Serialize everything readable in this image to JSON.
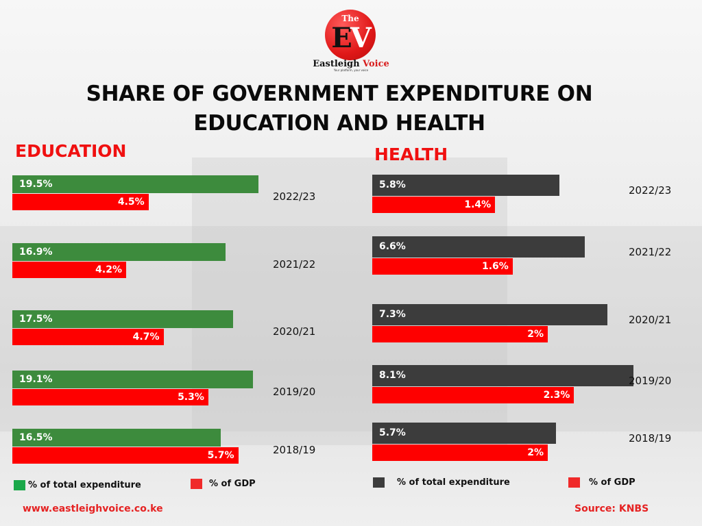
{
  "logo": {
    "the": "The",
    "e": "E",
    "v": "V",
    "name_1": "Eastleigh",
    "name_2": "Voice",
    "tagline": "Your platform, your voice"
  },
  "title_line1": "SHARE OF GOVERNMENT EXPENDITURE ON",
  "title_line2": "EDUCATION AND HEALTH",
  "chart_data": [
    {
      "type": "bar",
      "orientation": "horizontal",
      "title": "EDUCATION",
      "categories": [
        "2022/23",
        "2021/22",
        "2020/21",
        "2019/20",
        "2018/19"
      ],
      "series": [
        {
          "name": "% of total expenditure",
          "color": "#3d8b3d",
          "values": [
            19.5,
            16.9,
            17.5,
            19.1,
            16.5
          ],
          "labels": [
            "19.5%",
            "16.9%",
            "17.5%",
            "19.1%",
            "16.5%"
          ]
        },
        {
          "name": "% of GDP",
          "color": "#fe0000",
          "values": [
            4.5,
            4.2,
            4.7,
            5.3,
            5.7
          ],
          "labels": [
            "4.5%",
            "4.2%",
            "4.7%",
            "5.3%",
            "5.7%"
          ]
        }
      ],
      "legend_colors": [
        "#1aa84a",
        "#f02a2a"
      ],
      "legend": "bottom",
      "grid": false
    },
    {
      "type": "bar",
      "orientation": "horizontal",
      "title": "HEALTH",
      "categories": [
        "2022/23",
        "2021/22",
        "2020/21",
        "2019/20",
        "2018/19"
      ],
      "series": [
        {
          "name": "% of total expenditure",
          "color": "#3c3c3c",
          "values": [
            5.8,
            6.6,
            7.3,
            8.1,
            5.7
          ],
          "labels": [
            "5.8%",
            "6.6%",
            "7.3%",
            "8.1%",
            "5.7%"
          ]
        },
        {
          "name": "% of GDP",
          "color": "#fe0000",
          "values": [
            1.4,
            1.6,
            2,
            2.3,
            2
          ],
          "labels": [
            "1.4%",
            "1.6%",
            "2%",
            "2.3%",
            "2%"
          ]
        }
      ],
      "legend_colors": [
        "#3c3c3c",
        "#f02a2a"
      ],
      "legend": "bottom",
      "grid": false
    }
  ],
  "footer": {
    "website": "www.eastleighvoice.co.ke",
    "source": "Source: KNBS"
  }
}
